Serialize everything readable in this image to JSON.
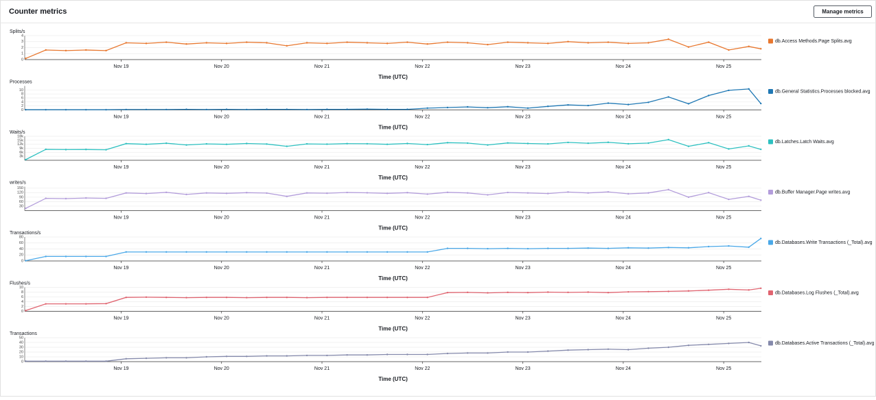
{
  "header": {
    "title": "Counter metrics",
    "button": "Manage metrics"
  },
  "chart_data": [
    {
      "type": "line",
      "y_label": "Splits/s",
      "x_label": "Time (UTC)",
      "x": [
        18.05,
        18.25,
        18.45,
        18.65,
        18.85,
        19.05,
        19.25,
        19.45,
        19.65,
        19.85,
        20.05,
        20.25,
        20.45,
        20.65,
        20.85,
        21.05,
        21.25,
        21.45,
        21.65,
        21.85,
        22.05,
        22.25,
        22.45,
        22.65,
        22.85,
        23.05,
        23.25,
        23.45,
        23.65,
        23.85,
        24.05,
        24.25,
        24.45,
        24.65,
        24.85,
        25.05,
        25.25,
        25.37
      ],
      "xlim": [
        18.04,
        25.375
      ],
      "xticks": [
        {
          "value": 19,
          "label": "Nov 19"
        },
        {
          "value": 20,
          "label": "Nov 20"
        },
        {
          "value": 21,
          "label": "Nov 21"
        },
        {
          "value": 22,
          "label": "Nov 22"
        },
        {
          "value": 23,
          "label": "Nov 23"
        },
        {
          "value": 24,
          "label": "Nov 24"
        },
        {
          "value": 25,
          "label": "Nov 25"
        }
      ],
      "ylim": [
        0,
        4
      ],
      "yticks": [
        0,
        1,
        2,
        3,
        4
      ],
      "grid": true,
      "series": [
        {
          "name": "db.Access Methods.Page Splits.avg",
          "color": "#e8772e",
          "values": [
            0.2,
            1.6,
            1.5,
            1.6,
            1.5,
            2.8,
            2.7,
            2.9,
            2.6,
            2.8,
            2.7,
            2.9,
            2.8,
            2.3,
            2.8,
            2.7,
            2.9,
            2.8,
            2.7,
            2.9,
            2.6,
            2.9,
            2.8,
            2.5,
            2.9,
            2.8,
            2.7,
            3.0,
            2.8,
            2.9,
            2.7,
            2.8,
            3.4,
            2.1,
            2.9,
            1.6,
            2.2,
            1.8
          ]
        }
      ]
    },
    {
      "type": "line",
      "y_label": "Processes",
      "x_label": "Time (UTC)",
      "x": [
        18.05,
        18.25,
        18.45,
        18.65,
        18.85,
        19.05,
        19.25,
        19.45,
        19.65,
        19.85,
        20.05,
        20.25,
        20.45,
        20.65,
        20.85,
        21.05,
        21.25,
        21.45,
        21.65,
        21.85,
        22.05,
        22.25,
        22.45,
        22.65,
        22.85,
        23.05,
        23.25,
        23.45,
        23.65,
        23.85,
        24.05,
        24.25,
        24.45,
        24.65,
        24.85,
        25.05,
        25.25,
        25.37
      ],
      "xlim": [
        18.04,
        25.375
      ],
      "xticks": [
        {
          "value": 19,
          "label": "Nov 19"
        },
        {
          "value": 20,
          "label": "Nov 20"
        },
        {
          "value": 21,
          "label": "Nov 21"
        },
        {
          "value": 22,
          "label": "Nov 22"
        },
        {
          "value": 23,
          "label": "Nov 23"
        },
        {
          "value": 24,
          "label": "Nov 24"
        },
        {
          "value": 25,
          "label": "Nov 25"
        }
      ],
      "ylim": [
        0,
        12
      ],
      "yticks": [
        0,
        2,
        4,
        6,
        8,
        10
      ],
      "grid": true,
      "series": [
        {
          "name": "db.General Statistics.Processes blocked.avg",
          "color": "#1f78b4",
          "values": [
            0.1,
            0.1,
            0.1,
            0.1,
            0.1,
            0.2,
            0.2,
            0.2,
            0.3,
            0.2,
            0.3,
            0.2,
            0.3,
            0.3,
            0.2,
            0.3,
            0.3,
            0.4,
            0.3,
            0.3,
            0.9,
            1.2,
            1.5,
            1.1,
            1.6,
            0.9,
            1.8,
            2.5,
            2.2,
            3.4,
            2.7,
            3.8,
            6.5,
            3.1,
            7.2,
            9.8,
            10.5,
            3.2
          ]
        }
      ]
    },
    {
      "type": "line",
      "y_label": "Waits/s",
      "x_label": "Time (UTC)",
      "x": [
        18.05,
        18.25,
        18.45,
        18.65,
        18.85,
        19.05,
        19.25,
        19.45,
        19.65,
        19.85,
        20.05,
        20.25,
        20.45,
        20.65,
        20.85,
        21.05,
        21.25,
        21.45,
        21.65,
        21.85,
        22.05,
        22.25,
        22.45,
        22.65,
        22.85,
        23.05,
        23.25,
        23.45,
        23.65,
        23.85,
        24.05,
        24.25,
        24.45,
        24.65,
        24.85,
        25.05,
        25.25,
        25.37
      ],
      "xlim": [
        18.04,
        25.375
      ],
      "xticks": [
        {
          "value": 19,
          "label": "Nov 19"
        },
        {
          "value": 20,
          "label": "Nov 20"
        },
        {
          "value": 21,
          "label": "Nov 21"
        },
        {
          "value": 22,
          "label": "Nov 22"
        },
        {
          "value": 23,
          "label": "Nov 23"
        },
        {
          "value": 24,
          "label": "Nov 24"
        },
        {
          "value": 25,
          "label": "Nov 25"
        }
      ],
      "ylim": [
        0,
        18000
      ],
      "yticks": [
        {
          "value": 3000,
          "label": "3k"
        },
        {
          "value": 6000,
          "label": "6k"
        },
        {
          "value": 9000,
          "label": "9k"
        },
        {
          "value": 12000,
          "label": "12k"
        },
        {
          "value": 15000,
          "label": "15k"
        },
        {
          "value": 18000,
          "label": "18k"
        }
      ],
      "grid": true,
      "series": [
        {
          "name": "db.Latches.Latch Waits.avg",
          "color": "#2cc0c0",
          "values": [
            500,
            8200,
            8000,
            8100,
            7900,
            12500,
            12000,
            12800,
            11500,
            12300,
            12000,
            12600,
            12200,
            10500,
            12300,
            12100,
            12500,
            12400,
            12000,
            12600,
            11800,
            13200,
            12900,
            11500,
            13000,
            12600,
            12300,
            13400,
            12800,
            13500,
            12400,
            12900,
            15500,
            10500,
            13200,
            8500,
            10800,
            8200
          ]
        }
      ]
    },
    {
      "type": "line",
      "y_label": "writes/s",
      "x_label": "Time (UTC)",
      "x": [
        18.05,
        18.25,
        18.45,
        18.65,
        18.85,
        19.05,
        19.25,
        19.45,
        19.65,
        19.85,
        20.05,
        20.25,
        20.45,
        20.65,
        20.85,
        21.05,
        21.25,
        21.45,
        21.65,
        21.85,
        22.05,
        22.25,
        22.45,
        22.65,
        22.85,
        23.05,
        23.25,
        23.45,
        23.65,
        23.85,
        24.05,
        24.25,
        24.45,
        24.65,
        24.85,
        25.05,
        25.25,
        25.37
      ],
      "xlim": [
        18.04,
        25.375
      ],
      "xticks": [
        {
          "value": 19,
          "label": "Nov 19"
        },
        {
          "value": 20,
          "label": "Nov 20"
        },
        {
          "value": 21,
          "label": "Nov 21"
        },
        {
          "value": 22,
          "label": "Nov 22"
        },
        {
          "value": 23,
          "label": "Nov 23"
        },
        {
          "value": 24,
          "label": "Nov 24"
        },
        {
          "value": 25,
          "label": "Nov 25"
        }
      ],
      "ylim": [
        0,
        160
      ],
      "yticks": [
        30,
        60,
        90,
        120,
        150
      ],
      "grid": true,
      "series": [
        {
          "name": "db.Buffer Manager.Page writes.avg",
          "color": "#b39ddb",
          "values": [
            15,
            82,
            80,
            84,
            82,
            118,
            114,
            122,
            108,
            118,
            115,
            120,
            117,
            95,
            118,
            116,
            121,
            119,
            115,
            120,
            110,
            122,
            118,
            105,
            121,
            118,
            114,
            124,
            118,
            125,
            112,
            118,
            140,
            90,
            120,
            75,
            95,
            70
          ]
        }
      ]
    },
    {
      "type": "line",
      "y_label": "Transactions/s",
      "x_label": "Time (UTC)",
      "x": [
        18.05,
        18.25,
        18.45,
        18.65,
        18.85,
        19.05,
        19.25,
        19.45,
        19.65,
        19.85,
        20.05,
        20.25,
        20.45,
        20.65,
        20.85,
        21.05,
        21.25,
        21.45,
        21.65,
        21.85,
        22.05,
        22.25,
        22.45,
        22.65,
        22.85,
        23.05,
        23.25,
        23.45,
        23.65,
        23.85,
        24.05,
        24.25,
        24.45,
        24.65,
        24.85,
        25.05,
        25.25,
        25.37
      ],
      "xlim": [
        18.04,
        25.375
      ],
      "xticks": [
        {
          "value": 19,
          "label": "Nov 19"
        },
        {
          "value": 20,
          "label": "Nov 20"
        },
        {
          "value": 21,
          "label": "Nov 21"
        },
        {
          "value": 22,
          "label": "Nov 22"
        },
        {
          "value": 23,
          "label": "Nov 23"
        },
        {
          "value": 24,
          "label": "Nov 24"
        },
        {
          "value": 25,
          "label": "Nov 25"
        }
      ],
      "ylim": [
        0,
        80
      ],
      "yticks": [
        0,
        20,
        40,
        60,
        80
      ],
      "grid": true,
      "series": [
        {
          "name": "db.Databases.Write Transactions (_Total).avg",
          "color": "#4aa8e8",
          "values": [
            1,
            15,
            15,
            15,
            15,
            30,
            30,
            30,
            30,
            30,
            30,
            30,
            30,
            30,
            30,
            30,
            30,
            30,
            30,
            30,
            30,
            42,
            42,
            41,
            42,
            41,
            42,
            42,
            43,
            42,
            44,
            43,
            45,
            44,
            48,
            50,
            46,
            75
          ]
        }
      ]
    },
    {
      "type": "line",
      "y_label": "Flushes/s",
      "x_label": "Time (UTC)",
      "x": [
        18.05,
        18.25,
        18.45,
        18.65,
        18.85,
        19.05,
        19.25,
        19.45,
        19.65,
        19.85,
        20.05,
        20.25,
        20.45,
        20.65,
        20.85,
        21.05,
        21.25,
        21.45,
        21.65,
        21.85,
        22.05,
        22.25,
        22.45,
        22.65,
        22.85,
        23.05,
        23.25,
        23.45,
        23.65,
        23.85,
        24.05,
        24.25,
        24.45,
        24.65,
        24.85,
        25.05,
        25.25,
        25.37
      ],
      "xlim": [
        18.04,
        25.375
      ],
      "xticks": [
        {
          "value": 19,
          "label": "Nov 19"
        },
        {
          "value": 20,
          "label": "Nov 20"
        },
        {
          "value": 21,
          "label": "Nov 21"
        },
        {
          "value": 22,
          "label": "Nov 22"
        },
        {
          "value": 23,
          "label": "Nov 23"
        },
        {
          "value": 24,
          "label": "Nov 24"
        },
        {
          "value": 25,
          "label": "Nov 25"
        }
      ],
      "ylim": [
        0,
        10
      ],
      "yticks": [
        0,
        2,
        4,
        6,
        8,
        10
      ],
      "grid": true,
      "series": [
        {
          "name": "db.Databases.Log Flushes (_Total).avg",
          "color": "#e06470",
          "values": [
            0.3,
            3.1,
            3.1,
            3.1,
            3.2,
            5.8,
            5.9,
            5.8,
            5.7,
            5.8,
            5.8,
            5.7,
            5.8,
            5.8,
            5.7,
            5.8,
            5.8,
            5.8,
            5.8,
            5.8,
            5.8,
            7.8,
            7.9,
            7.7,
            7.9,
            7.8,
            8.0,
            7.9,
            8.0,
            7.8,
            8.1,
            8.2,
            8.3,
            8.5,
            8.8,
            9.2,
            8.9,
            9.6
          ]
        }
      ]
    },
    {
      "type": "line",
      "y_label": "Transactions",
      "x_label": "Time (UTC)",
      "x": [
        18.05,
        18.25,
        18.45,
        18.65,
        18.85,
        19.05,
        19.25,
        19.45,
        19.65,
        19.85,
        20.05,
        20.25,
        20.45,
        20.65,
        20.85,
        21.05,
        21.25,
        21.45,
        21.65,
        21.85,
        22.05,
        22.25,
        22.45,
        22.65,
        22.85,
        23.05,
        23.25,
        23.45,
        23.65,
        23.85,
        24.05,
        24.25,
        24.45,
        24.65,
        24.85,
        25.05,
        25.25,
        25.37
      ],
      "xlim": [
        18.04,
        25.375
      ],
      "xticks": [
        {
          "value": 19,
          "label": "Nov 19"
        },
        {
          "value": 20,
          "label": "Nov 20"
        },
        {
          "value": 21,
          "label": "Nov 21"
        },
        {
          "value": 22,
          "label": "Nov 22"
        },
        {
          "value": 23,
          "label": "Nov 23"
        },
        {
          "value": 24,
          "label": "Nov 24"
        },
        {
          "value": 25,
          "label": "Nov 25"
        }
      ],
      "ylim": [
        0,
        50
      ],
      "yticks": [
        0,
        10,
        20,
        30,
        40,
        50
      ],
      "grid": true,
      "series": [
        {
          "name": "db.Databases.Active Transactions (_Total).avg",
          "color": "#8489ab",
          "values": [
            1,
            1,
            1,
            1,
            1,
            6,
            7,
            8,
            8,
            10,
            11,
            11,
            12,
            12,
            13,
            13,
            14,
            14,
            15,
            15,
            15,
            17,
            18,
            18,
            20,
            20,
            22,
            24,
            25,
            26,
            25,
            28,
            30,
            34,
            36,
            38,
            40,
            33
          ]
        }
      ]
    }
  ]
}
